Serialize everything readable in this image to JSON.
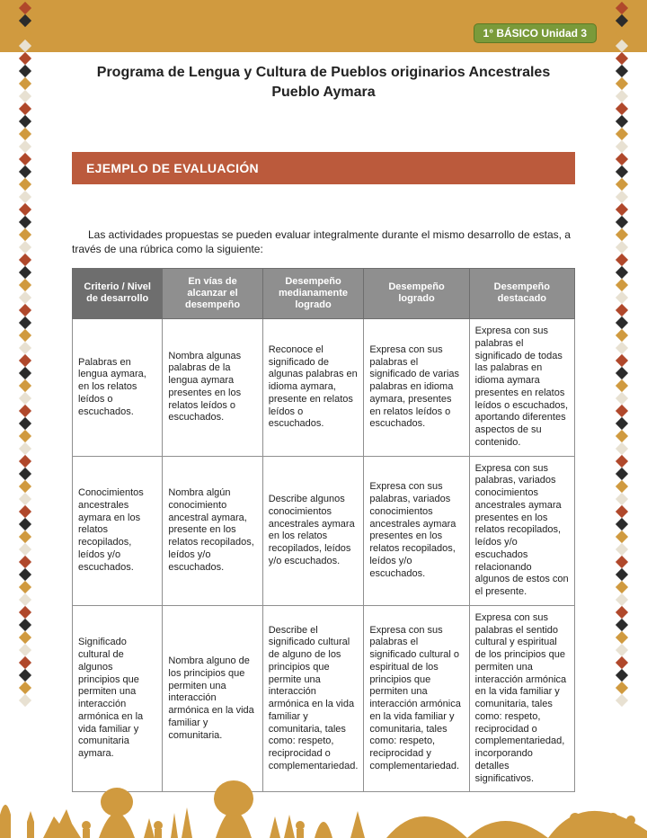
{
  "colors": {
    "top_band": "#d09a3f",
    "badge_bg": "#7a9a3a",
    "badge_border": "#5b7a24",
    "section_bar_bg": "#bb5a3c",
    "table_header_bg": "#8f8f8f",
    "table_first_header_bg": "#6e6e6e",
    "table_border": "#8f8f8f",
    "text": "#222222",
    "diamond_palette": [
      "#b0482b",
      "#2b2b2b",
      "#d09a3f",
      "#e8e1d2"
    ]
  },
  "badge": {
    "text": "1° BÁSICO Unidad 3"
  },
  "title": {
    "line1": "Programa de Lengua y Cultura de Pueblos originarios Ancestrales",
    "line2": "Pueblo Aymara"
  },
  "section_heading": "EJEMPLO DE EVALUACIÓN",
  "intro": "Las actividades propuestas se pueden evaluar integralmente durante el mismo desarrollo de estas, a través de una rúbrica como la siguiente:",
  "rubric": {
    "headers": [
      "Criterio / Nivel de desarrollo",
      "En vías de alcanzar el desempeño",
      "Desempeño medianamente logrado",
      "Desempeño logrado",
      "Desempeño destacado"
    ],
    "col_widths_pct": [
      18,
      20,
      20,
      21,
      21
    ],
    "rows": [
      {
        "criterio": "Palabras en lengua aymara, en los relatos leídos o escuchados.",
        "c1": "Nombra algunas palabras de la lengua aymara presentes en los relatos leídos o escuchados.",
        "c2": "Reconoce el significado de algunas palabras en idioma aymara, presente en relatos leídos o escuchados.",
        "c3": "Expresa con sus palabras el significado de varias palabras en idioma aymara, presentes en relatos leídos o escuchados.",
        "c4": "Expresa con sus palabras el significado de todas las palabras en idioma aymara presentes en relatos leídos o escuchados, aportando diferentes aspectos de su contenido."
      },
      {
        "criterio": "Conocimientos ancestrales aymara en los relatos recopilados, leídos y/o escuchados.",
        "c1": "Nombra algún conocimiento ancestral aymara, presente en los relatos recopilados, leídos y/o escuchados.",
        "c2": "Describe algunos conocimientos ancestrales aymara en los relatos recopilados, leídos y/o escuchados.",
        "c3": "Expresa con sus palabras, variados conocimientos ancestrales aymara presentes en los relatos recopilados, leídos y/o escuchados.",
        "c4": "Expresa con sus palabras, variados conocimientos ancestrales aymara presentes en los relatos recopilados, leídos y/o escuchados relacionando algunos de estos con el presente."
      },
      {
        "criterio": "Significado cultural de algunos principios que permiten una interacción armónica en la vida familiar y comunitaria aymara.",
        "c1": "Nombra alguno de los principios que permiten una interacción armónica en la vida familiar y comunitaria.",
        "c2": "Describe el significado cultural de alguno de los principios que permite una interacción armónica en la vida familiar y comunitaria, tales como: respeto, reciprocidad o complementariedad.",
        "c3": "Expresa con sus palabras el significado cultural o espiritual de los principios que permiten una interacción armónica en la vida familiar y comunitaria, tales como: respeto, reciprocidad y complementariedad.",
        "c4": "Expresa con sus palabras el sentido cultural y espiritual de los principios que permiten una interacción armónica en la vida familiar y comunitaria, tales como: respeto, reciprocidad o complementariedad, incorporando detalles significativos."
      }
    ]
  }
}
